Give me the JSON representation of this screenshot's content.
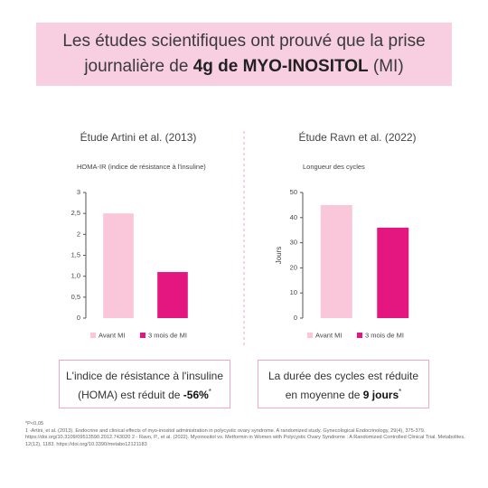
{
  "header": {
    "line1": "Les études scientifiques ont prouvé que la prise",
    "line2": [
      "journalière de ",
      "4g de MYO-INOSITOL",
      " (MI)"
    ]
  },
  "chart_data": [
    {
      "type": "bar",
      "title": "Étude Artini et al. (2013)",
      "subtitle": "HOMA-IR (indice de résistance à l'insuline)",
      "ylim": [
        0,
        3
      ],
      "yticks": [
        0,
        {
          "value": 0.5,
          "label": "0,5"
        },
        {
          "value": 1,
          "label": "1,0"
        },
        {
          "value": 1.5,
          "label": "1,5"
        },
        2,
        {
          "value": 2.5,
          "label": "2,5"
        },
        3
      ],
      "series": [
        {
          "name": "Avant MI",
          "color": "#f9c6da",
          "values": [
            2.5
          ]
        },
        {
          "name": "3 mois de MI",
          "color": "#e3177f",
          "values": [
            1.1
          ]
        }
      ]
    },
    {
      "type": "bar",
      "title": "Étude Ravn et al. (2022)",
      "subtitle": "Longueur des cycles",
      "ylabel": "Jours",
      "ylim": [
        0,
        50
      ],
      "yticks": [
        0,
        10,
        20,
        30,
        40,
        50
      ],
      "series": [
        {
          "name": "Avant MI",
          "color": "#f9c6da",
          "values": [
            45
          ]
        },
        {
          "name": "3 mois de MI",
          "color": "#e3177f",
          "values": [
            36
          ]
        }
      ]
    }
  ],
  "summaries": [
    [
      "L'indice de résistance à l'insuline (HOMA) est réduit de ",
      "-56%",
      "*"
    ],
    [
      "La durée des cycles est réduite en moyenne de ",
      "9 jours",
      "*"
    ]
  ],
  "footnotes": [
    "*P<0,05",
    "1 -Artini, et al. (2013). Endocrine and clinical effects of myo-inositol administration in polycystic ovary syndrome. A randomized study. Gynecological Endocrinology, 29(4), 375-379. https://doi.org/10.3109/09513590.2012.743020 2 - Ravn, P., et al. (2022). Myoinositol vs. Metformin in Women with Polycystic Ovary Syndrome : A Randomized Controlled Clinical Trial. Metabolites, 12(12), 1183. https://doi.org/10.3390/metabo12121183"
  ]
}
